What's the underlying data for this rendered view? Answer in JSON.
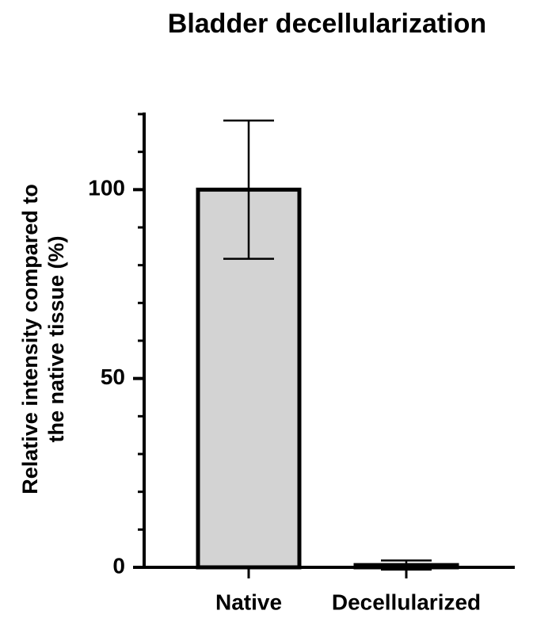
{
  "chart_data": {
    "type": "bar",
    "title": "Bladder decellularization",
    "ylabel": [
      "Relative intensity compared to",
      "the native tissue (%)"
    ],
    "categories": [
      "Native",
      "Decellularized"
    ],
    "values": [
      100,
      0.6
    ],
    "errors": [
      18.3,
      1.2
    ],
    "color": "#d3d3d3",
    "edgecolor": "#000000",
    "ylim": [
      0,
      120
    ],
    "yticks": [
      0,
      50,
      100
    ],
    "minor_yticks": [
      10,
      20,
      30,
      40,
      60,
      70,
      80,
      90,
      110,
      120
    ],
    "grid": false
  }
}
